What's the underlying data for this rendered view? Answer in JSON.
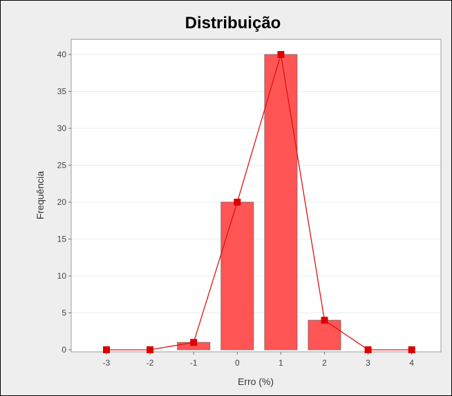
{
  "chart_data": {
    "type": "bar",
    "title": "Distribuição",
    "xlabel": "Erro (%)",
    "ylabel": "Frequência",
    "categories": [
      "-3",
      "-2",
      "-1",
      "0",
      "1",
      "2",
      "3",
      "4"
    ],
    "values": [
      0,
      0,
      1,
      20,
      40,
      4,
      0,
      0
    ],
    "line_series": {
      "values": [
        0,
        0,
        1,
        20,
        40,
        4,
        0,
        0
      ],
      "marker": "square"
    },
    "yticks": [
      0,
      5,
      10,
      15,
      20,
      25,
      30,
      35,
      40
    ],
    "ylim": [
      0,
      43
    ],
    "grid": true,
    "colors": {
      "bar_fill": "#ff5555",
      "bar_stroke": "#8a6a6a",
      "line": "#e01010",
      "marker": "#dd0000",
      "plot_bg": "#ffffff",
      "page_bg": "#eeeeee"
    }
  }
}
